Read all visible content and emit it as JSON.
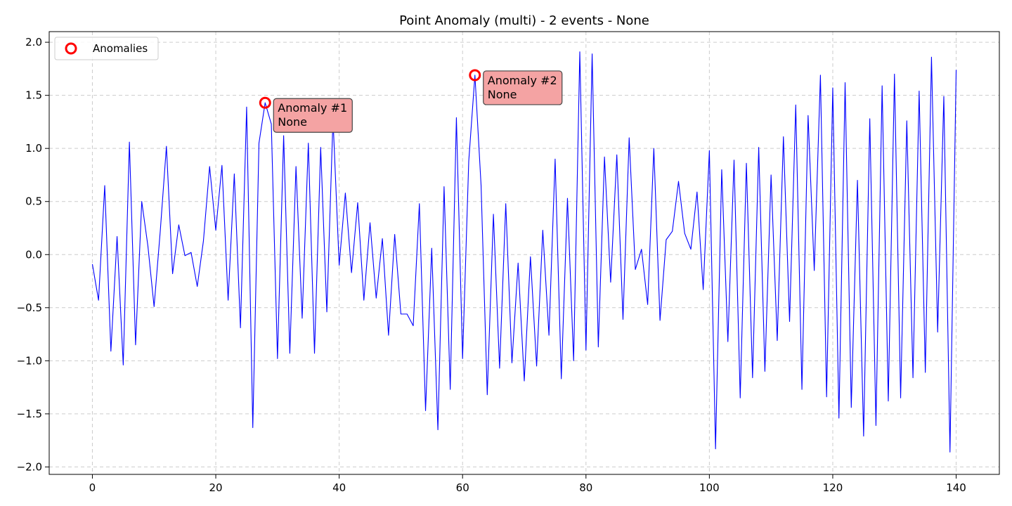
{
  "chart_data": {
    "type": "line",
    "title": "Point Anomaly (multi) - 2 events - None",
    "xlabel": "",
    "ylabel": "",
    "xlim": [
      -7,
      147
    ],
    "ylim": [
      -2.07,
      2.1
    ],
    "xticks": [
      0,
      20,
      40,
      60,
      80,
      100,
      120,
      140
    ],
    "xtick_labels": [
      "0",
      "20",
      "40",
      "60",
      "80",
      "100",
      "120",
      "140"
    ],
    "yticks": [
      2.0,
      1.5,
      1.0,
      0.5,
      0.0,
      -0.5,
      -1.0,
      -1.5,
      -2.0
    ],
    "ytick_labels": [
      "2.0",
      "1.5",
      "1.0",
      "0.5",
      "0.0",
      "−0.5",
      "−1.0",
      "−1.5",
      "−2.0"
    ],
    "grid": true,
    "legend": {
      "placement": "top-left",
      "entries": [
        "Anomalies"
      ]
    },
    "series": [
      {
        "color": "#0000ff",
        "x": [
          0,
          1,
          2,
          3,
          4,
          5,
          6,
          7,
          8,
          9,
          10,
          11,
          12,
          13,
          14,
          15,
          16,
          17,
          18,
          19,
          20,
          21,
          22,
          23,
          24,
          25,
          26,
          27,
          28,
          29,
          30,
          31,
          32,
          33,
          34,
          35,
          36,
          37,
          38,
          39,
          40,
          41,
          42,
          43,
          44,
          45,
          46,
          47,
          48,
          49,
          50,
          51,
          52,
          53,
          54,
          55,
          56,
          57,
          58,
          59,
          60,
          61,
          62,
          63,
          64,
          65,
          66,
          67,
          68,
          69,
          70,
          71,
          72,
          73,
          74,
          75,
          76,
          77,
          78,
          79,
          80,
          81,
          82,
          83,
          84,
          85,
          86,
          87,
          88,
          89,
          90,
          91,
          92,
          93,
          94,
          95,
          96,
          97,
          98,
          99,
          100,
          101,
          102,
          103,
          104,
          105,
          106,
          107,
          108,
          109,
          110,
          111,
          112,
          113,
          114,
          115,
          116,
          117,
          118,
          119,
          120,
          121,
          122,
          123,
          124,
          125,
          126,
          127,
          128,
          129,
          130,
          131,
          132,
          133,
          134,
          135,
          136,
          137,
          138,
          139,
          140
        ],
        "y": [
          -0.09,
          -0.43,
          0.65,
          -0.91,
          0.17,
          -1.04,
          1.06,
          -0.85,
          0.5,
          0.08,
          -0.49,
          0.22,
          1.02,
          -0.18,
          0.28,
          -0.01,
          0.02,
          -0.3,
          0.13,
          0.83,
          0.23,
          0.84,
          -0.43,
          0.76,
          -0.69,
          1.39,
          -1.63,
          1.05,
          1.43,
          1.23,
          -0.98,
          1.12,
          -0.93,
          0.83,
          -0.6,
          1.05,
          -0.93,
          1.01,
          -0.54,
          1.28,
          -0.1,
          0.58,
          -0.17,
          0.49,
          -0.43,
          0.3,
          -0.41,
          0.15,
          -0.76,
          0.19,
          -0.56,
          -0.56,
          -0.67,
          0.48,
          -1.47,
          0.06,
          -1.65,
          0.64,
          -1.27,
          1.29,
          -0.98,
          0.88,
          1.69,
          0.65,
          -1.32,
          0.38,
          -1.07,
          0.48,
          -1.02,
          -0.08,
          -1.19,
          -0.02,
          -1.05,
          0.23,
          -0.76,
          0.9,
          -1.17,
          0.53,
          -1.0,
          1.91,
          -0.9,
          1.89,
          -0.87,
          0.92,
          -0.26,
          0.94,
          -0.61,
          1.1,
          -0.14,
          0.05,
          -0.47,
          1.0,
          -0.62,
          0.14,
          0.22,
          0.69,
          0.2,
          0.05,
          0.59,
          -0.33,
          0.98,
          -1.83,
          0.8,
          -0.82,
          0.89,
          -1.35,
          0.86,
          -1.16,
          1.01,
          -1.1,
          0.75,
          -0.81,
          1.11,
          -0.63,
          1.41,
          -1.27,
          1.31,
          -0.15,
          1.69,
          -1.34,
          1.57,
          -1.54,
          1.62,
          -1.44,
          0.7,
          -1.71,
          1.28,
          -1.61,
          1.59,
          -1.38,
          1.7,
          -1.35,
          1.26,
          -1.16,
          1.54,
          -1.11,
          1.86,
          -0.73,
          1.49,
          -1.86,
          1.74
        ]
      }
    ],
    "anomalies": {
      "legend_label": "Anomalies",
      "color": "#ff0000",
      "points": [
        {
          "x": 28,
          "y": 1.43,
          "label_line1": "Anomaly #1",
          "label_line2": "None"
        },
        {
          "x": 62,
          "y": 1.69,
          "label_line1": "Anomaly #2",
          "label_line2": "None"
        }
      ]
    }
  }
}
